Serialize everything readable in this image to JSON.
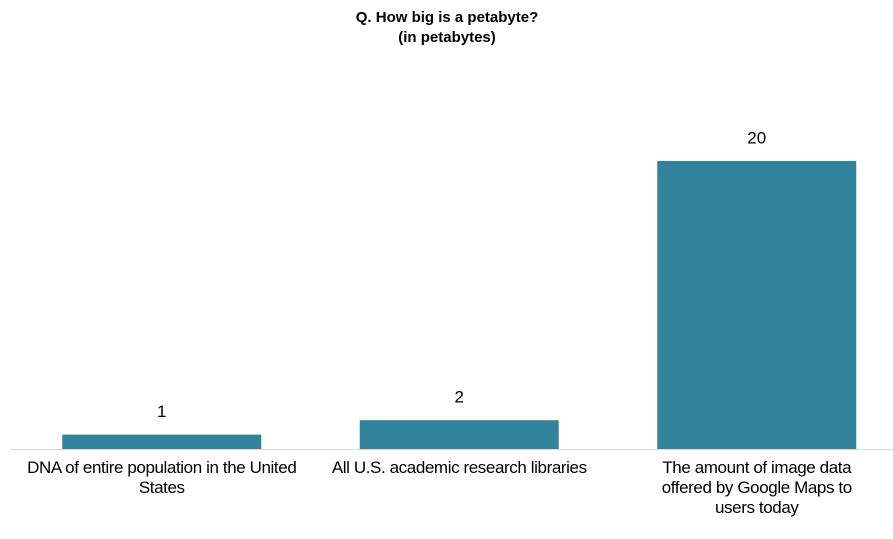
{
  "chart_data": {
    "type": "bar",
    "title": "Q. How big is a petabyte?",
    "subtitle": "(in petabytes)",
    "categories": [
      "DNA of entire population in the United States",
      "All U.S. academic research libraries",
      "The amount of image data offered by Google Maps to users today"
    ],
    "values": [
      1,
      2,
      20
    ],
    "color": "#31849b",
    "ylim": [
      0,
      20
    ]
  }
}
